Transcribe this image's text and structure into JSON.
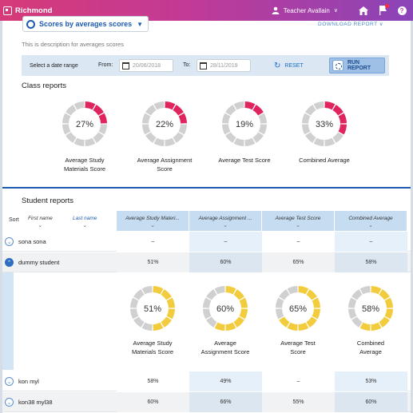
{
  "topbar": {
    "brand": "Richmond",
    "user_name": "Teacher Avallain",
    "user_caret": "∨"
  },
  "report_selector": {
    "label": "Scores by averages scores",
    "caret": "▼"
  },
  "download_link": "DOWNLOAD REPORT ∨",
  "description": "This is description for averages scores",
  "date_bar": {
    "range_label": "Select a date range",
    "from_label": "From:",
    "from_value": "20/06/2018",
    "to_label": "To:",
    "to_value": "28/11/2019",
    "reset_label": "RESET",
    "run_label": "RUN REPORT"
  },
  "class_reports": {
    "title": "Class reports",
    "items": [
      {
        "percent": 27,
        "value_text": "27%",
        "label_line1": "Average Study",
        "label_line2": "Materials Score"
      },
      {
        "percent": 22,
        "value_text": "22%",
        "label_line1": "Average Assignment",
        "label_line2": "Score"
      },
      {
        "percent": 19,
        "value_text": "19%",
        "label_line1": "Average Test Score",
        "label_line2": ""
      },
      {
        "percent": 33,
        "value_text": "33%",
        "label_line1": "Combined Average",
        "label_line2": ""
      }
    ],
    "fill_color": "#e0245e",
    "track_color": "#d0d0d0"
  },
  "student_reports": {
    "title": "Student reports",
    "columns": {
      "sort": "Sort",
      "first_name": "First name",
      "last_name": "Last name",
      "metric1": "Average Study Materi...",
      "metric2": "Average Assignment ...",
      "metric3": "Average Test Score",
      "metric4": "Combined Average",
      "chevron": "⌄"
    },
    "rows": [
      {
        "name": "sona sona",
        "m1": "–",
        "m2": "–",
        "m3": "–",
        "m4": "–",
        "expanded": false
      },
      {
        "name": "dummy student",
        "m1": "51%",
        "m2": "60%",
        "m3": "65%",
        "m4": "58%",
        "expanded": true
      },
      {
        "name": "kon myl",
        "m1": "58%",
        "m2": "49%",
        "m3": "–",
        "m4": "53%",
        "expanded": false
      },
      {
        "name": "kon38 myl38",
        "m1": "60%",
        "m2": "66%",
        "m3": "55%",
        "m4": "60%",
        "expanded": false
      }
    ],
    "expanded_detail": {
      "fill_color": "#f2cc3c",
      "track_color": "#d0d0d0",
      "items": [
        {
          "percent": 51,
          "value_text": "51%",
          "label_line1": "Average Study",
          "label_line2": "Materials Score"
        },
        {
          "percent": 60,
          "value_text": "60%",
          "label_line1": "Average",
          "label_line2": "Assignment Score"
        },
        {
          "percent": 65,
          "value_text": "65%",
          "label_line1": "Average Test",
          "label_line2": "Score"
        },
        {
          "percent": 58,
          "value_text": "58%",
          "label_line1": "Combined",
          "label_line2": "Average"
        }
      ]
    }
  }
}
